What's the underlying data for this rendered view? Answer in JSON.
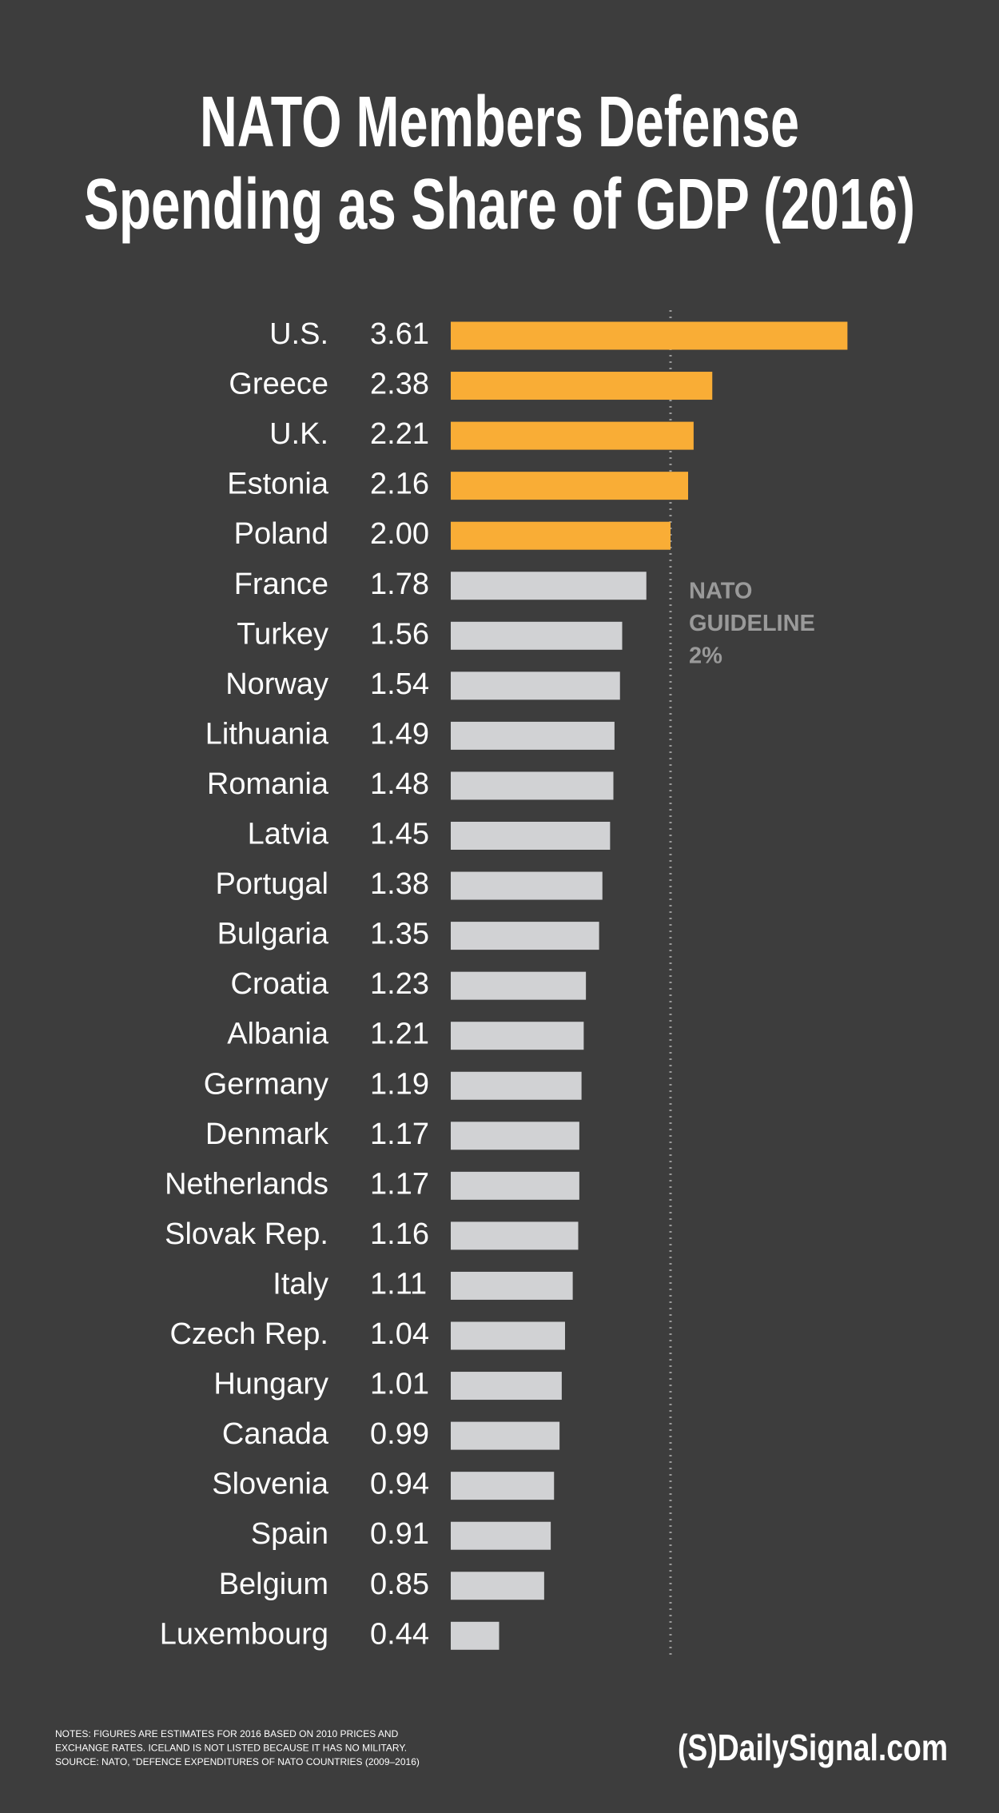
{
  "chart_data": {
    "type": "bar",
    "orientation": "horizontal",
    "title": [
      "NATO Members Defense",
      "Spending as Share of GDP (2016)"
    ],
    "categories": [
      "U.S.",
      "Greece",
      "U.K.",
      "Estonia",
      "Poland",
      "France",
      "Turkey",
      "Norway",
      "Lithuania",
      "Romania",
      "Latvia",
      "Portugal",
      "Bulgaria",
      "Croatia",
      "Albania",
      "Germany",
      "Denmark",
      "Netherlands",
      "Slovak Rep.",
      "Italy",
      "Czech Rep.",
      "Hungary",
      "Canada",
      "Slovenia",
      "Spain",
      "Belgium",
      "Luxembourg"
    ],
    "values": [
      3.61,
      2.38,
      2.21,
      2.16,
      2.0,
      1.78,
      1.56,
      1.54,
      1.49,
      1.48,
      1.45,
      1.38,
      1.35,
      1.23,
      1.21,
      1.19,
      1.17,
      1.17,
      1.16,
      1.11,
      1.04,
      1.01,
      0.99,
      0.94,
      0.91,
      0.85,
      0.44
    ],
    "value_labels": [
      "3.61",
      "2.38",
      "2.21",
      "2.16",
      "2.00",
      "1.78",
      "1.56",
      "1.54",
      "1.49",
      "1.48",
      "1.45",
      "1.38",
      "1.35",
      "1.23",
      "1.21",
      "1.19",
      "1.17",
      "1.17",
      "1.16",
      "1.11",
      "1.04",
      "1.01",
      "0.99",
      "0.94",
      "0.91",
      "0.85",
      "0.44"
    ],
    "colors": [
      "#f9ad36",
      "#f9ad36",
      "#f9ad36",
      "#f9ad36",
      "#f9ad36",
      "#d1d2d4",
      "#d1d2d4",
      "#d1d2d4",
      "#d1d2d4",
      "#d1d2d4",
      "#d1d2d4",
      "#d1d2d4",
      "#d1d2d4",
      "#d1d2d4",
      "#d1d2d4",
      "#d1d2d4",
      "#d1d2d4",
      "#d1d2d4",
      "#d1d2d4",
      "#d1d2d4",
      "#d1d2d4",
      "#d1d2d4",
      "#d1d2d4",
      "#d1d2d4",
      "#d1d2d4",
      "#d1d2d4",
      "#d1d2d4"
    ],
    "xlim": [
      0,
      4
    ],
    "reference_line": {
      "value": 2,
      "label": [
        "NATO",
        "GUIDELINE",
        "2%"
      ]
    },
    "notes": [
      "NOTES: FIGURES ARE ESTIMATES FOR 2016 BASED ON 2010 PRICES AND",
      "EXCHANGE RATES. ICELAND IS NOT LISTED BECAUSE IT HAS NO MILITARY.",
      "SOURCE: NATO, “DEFENCE EXPENDITURES OF NATO COUNTRIES (2009–2016)"
    ],
    "brand": "(S)DailySignal.com"
  }
}
